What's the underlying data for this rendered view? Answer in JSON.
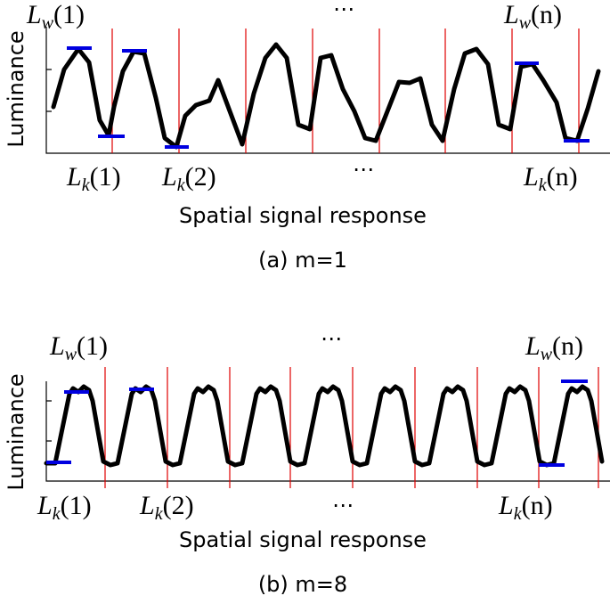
{
  "panels": [
    {
      "y_label": "Luminance",
      "x_label": "Spatial signal response",
      "caption": "(a) m=1",
      "top_labels": [
        {
          "base": "L",
          "sub": "w",
          "arg": "(1)"
        },
        {
          "base": "L",
          "sub": "w",
          "arg": "(n)"
        }
      ],
      "bottom_labels": [
        {
          "base": "L",
          "sub": "k",
          "arg": "(1)"
        },
        {
          "base": "L",
          "sub": "k",
          "arg": "(2)"
        },
        {
          "base": "L",
          "sub": "k",
          "arg": "(n)"
        }
      ],
      "ellipsis": "⋯"
    },
    {
      "y_label": "Luminance",
      "x_label": "Spatial signal response",
      "caption": "(b) m=8",
      "top_labels": [
        {
          "base": "L",
          "sub": "w",
          "arg": "(1)"
        },
        {
          "base": "L",
          "sub": "w",
          "arg": "(n)"
        }
      ],
      "bottom_labels": [
        {
          "base": "L",
          "sub": "k",
          "arg": "(1)"
        },
        {
          "base": "L",
          "sub": "k",
          "arg": "(2)"
        },
        {
          "base": "L",
          "sub": "k",
          "arg": "(n)"
        }
      ],
      "ellipsis": "⋯"
    }
  ]
}
